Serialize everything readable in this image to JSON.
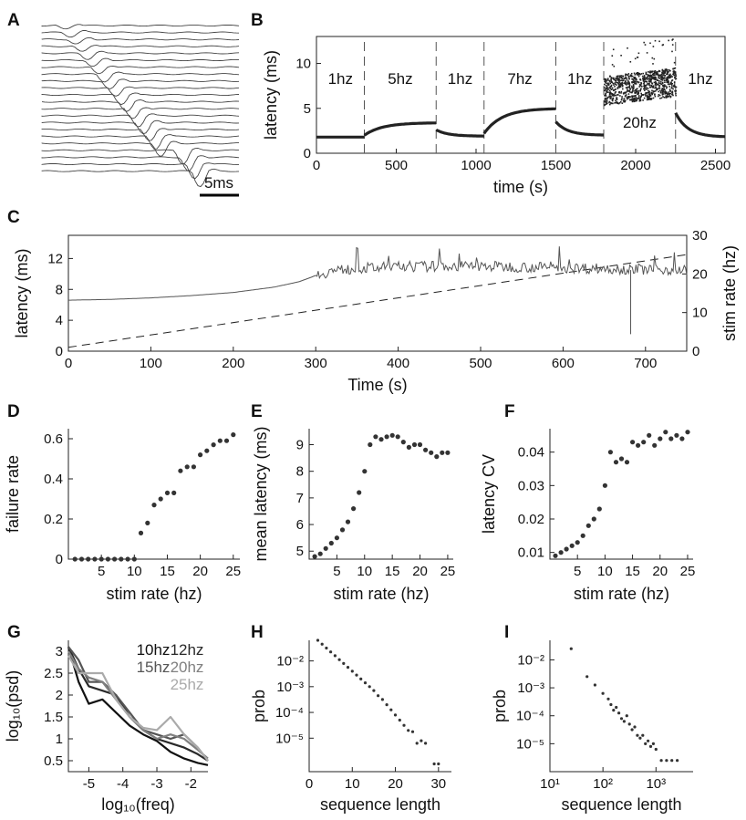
{
  "chart_data": [
    {
      "panel": "A",
      "type": "line",
      "description_label": "5ms",
      "trace_count": 22
    },
    {
      "panel": "B",
      "type": "scatter",
      "xlabel": "time (s)",
      "ylabel": "latency (ms)",
      "xlim": [
        0,
        2560
      ],
      "ylim": [
        0,
        13
      ],
      "xticks": [
        0,
        500,
        1000,
        1500,
        2000,
        2500
      ],
      "yticks": [
        0,
        5,
        10
      ],
      "segments": [
        {
          "label": "1hz",
          "start": 0,
          "end": 300,
          "latency_start": 1.8,
          "latency_end": 1.8
        },
        {
          "label": "5hz",
          "start": 300,
          "end": 750,
          "latency_start": 2.0,
          "latency_end": 3.4
        },
        {
          "label": "1hz",
          "start": 750,
          "end": 1050,
          "latency_start": 2.6,
          "latency_end": 1.9
        },
        {
          "label": "7hz",
          "start": 1050,
          "end": 1500,
          "latency_start": 2.2,
          "latency_end": 5.0
        },
        {
          "label": "1hz",
          "start": 1500,
          "end": 1800,
          "latency_start": 3.5,
          "latency_end": 2.0
        },
        {
          "label": "20hz",
          "start": 1800,
          "end": 2250,
          "latency_start": 7.0,
          "latency_end": 8.0
        },
        {
          "label": "1hz",
          "start": 2250,
          "end": 2560,
          "latency_start": 4.5,
          "latency_end": 1.8
        }
      ],
      "boundaries": [
        300,
        750,
        1050,
        1500,
        1800,
        2250
      ]
    },
    {
      "panel": "C",
      "type": "line",
      "xlabel": "Time (s)",
      "ylabel": "latency (ms)",
      "y2label": "stim rate (hz)",
      "xlim": [
        0,
        750
      ],
      "ylim": [
        0,
        15
      ],
      "y2lim": [
        0,
        30
      ],
      "xticks": [
        0,
        100,
        200,
        300,
        400,
        500,
        600,
        700
      ],
      "yticks": [
        0,
        4,
        8,
        12
      ],
      "y2ticks": [
        0,
        10,
        20,
        30
      ],
      "latency_x": [
        0,
        50,
        100,
        150,
        200,
        250,
        280,
        300,
        320,
        350,
        400,
        450,
        500,
        550,
        600,
        650,
        700,
        750
      ],
      "latency_y": [
        6.6,
        6.7,
        6.9,
        7.2,
        7.6,
        8.3,
        9.0,
        9.8,
        10.4,
        10.7,
        10.9,
        11.0,
        11.0,
        10.9,
        10.8,
        10.7,
        10.6,
        10.5
      ],
      "stim_rate": {
        "x": [
          0,
          750
        ],
        "y": [
          1,
          25
        ]
      },
      "outlier": {
        "x": 682,
        "y_min": 2.2,
        "y_max": 10.5
      }
    },
    {
      "panel": "D",
      "type": "scatter",
      "xlabel": "stim rate (hz)",
      "ylabel": "failure rate",
      "xlim": [
        0,
        26
      ],
      "ylim": [
        0,
        0.65
      ],
      "xticks": [
        5,
        10,
        15,
        20,
        25
      ],
      "yticks": [
        "0",
        "0.2",
        "0.4",
        "0.6"
      ],
      "x": [
        1,
        2,
        3,
        4,
        5,
        6,
        7,
        8,
        9,
        10,
        11,
        12,
        13,
        14,
        15,
        16,
        17,
        18,
        19,
        20,
        21,
        22,
        23,
        24,
        25
      ],
      "y": [
        0,
        0,
        0,
        0,
        0,
        0,
        0,
        0,
        0,
        0,
        0.13,
        0.18,
        0.27,
        0.3,
        0.33,
        0.33,
        0.44,
        0.46,
        0.46,
        0.52,
        0.54,
        0.57,
        0.59,
        0.59,
        0.62
      ]
    },
    {
      "panel": "E",
      "type": "scatter",
      "xlabel": "stim rate (hz)",
      "ylabel": "mean latency (ms)",
      "xlim": [
        0,
        26
      ],
      "ylim": [
        4.7,
        9.6
      ],
      "xticks": [
        5,
        10,
        15,
        20,
        25
      ],
      "yticks": [
        "5",
        "6",
        "7",
        "8",
        "9"
      ],
      "x": [
        1,
        2,
        3,
        4,
        5,
        6,
        7,
        8,
        9,
        10,
        11,
        12,
        13,
        14,
        15,
        16,
        17,
        18,
        19,
        20,
        21,
        22,
        23,
        24,
        25
      ],
      "y": [
        4.8,
        4.9,
        5.1,
        5.3,
        5.5,
        5.8,
        6.1,
        6.6,
        7.2,
        8.0,
        9.0,
        9.3,
        9.2,
        9.3,
        9.35,
        9.3,
        9.1,
        8.9,
        9.0,
        9.0,
        8.8,
        8.7,
        8.55,
        8.7,
        8.7
      ]
    },
    {
      "panel": "F",
      "type": "scatter",
      "xlabel": "stim rate (hz)",
      "ylabel": "latency CV",
      "xlim": [
        0,
        26
      ],
      "ylim": [
        0.008,
        0.047
      ],
      "xticks": [
        5,
        10,
        15,
        20,
        25
      ],
      "yticks": [
        "0.01",
        "0.02",
        "0.03",
        "0.04"
      ],
      "x": [
        1,
        2,
        3,
        4,
        5,
        6,
        7,
        8,
        9,
        10,
        11,
        12,
        13,
        14,
        15,
        16,
        17,
        18,
        19,
        20,
        21,
        22,
        23,
        24,
        25
      ],
      "y": [
        0.009,
        0.01,
        0.011,
        0.012,
        0.013,
        0.015,
        0.018,
        0.02,
        0.023,
        0.03,
        0.04,
        0.037,
        0.038,
        0.037,
        0.043,
        0.042,
        0.043,
        0.045,
        0.042,
        0.044,
        0.046,
        0.044,
        0.045,
        0.044,
        0.046
      ]
    },
    {
      "panel": "G",
      "type": "line",
      "xlabel": "log₁₀(freq)",
      "ylabel": "log₁₀(psd)",
      "xlim": [
        -5.6,
        -1.5
      ],
      "ylim": [
        0.25,
        3.25
      ],
      "xticks": [
        "-5",
        "-4",
        "-3",
        "-2"
      ],
      "yticks": [
        "0.5",
        "1",
        "1.5",
        "2",
        "2.5",
        "3"
      ],
      "x": [
        -5.6,
        -5.3,
        -5.0,
        -4.6,
        -4.2,
        -3.8,
        -3.4,
        -3.0,
        -2.6,
        -2.2,
        -1.8,
        -1.5
      ],
      "series": [
        {
          "name": "10hz",
          "color": "#111111",
          "values": [
            3.1,
            2.3,
            1.8,
            1.9,
            1.6,
            1.3,
            1.1,
            0.95,
            0.7,
            0.55,
            0.45,
            0.4
          ]
        },
        {
          "name": "12hz",
          "color": "#2a2a2a",
          "values": [
            3.1,
            2.6,
            2.2,
            2.1,
            2.0,
            1.5,
            1.2,
            1.0,
            0.9,
            0.8,
            0.65,
            0.5
          ]
        },
        {
          "name": "15hz",
          "color": "#555555",
          "values": [
            3.1,
            2.8,
            2.3,
            2.3,
            2.0,
            1.6,
            1.2,
            1.1,
            1.0,
            1.1,
            0.8,
            0.5
          ]
        },
        {
          "name": "20hz",
          "color": "#808080",
          "values": [
            3.0,
            2.6,
            2.4,
            2.3,
            1.9,
            1.5,
            1.2,
            1.0,
            1.1,
            1.0,
            0.75,
            0.55
          ]
        },
        {
          "name": "25hz",
          "color": "#aaaaaa",
          "values": [
            2.9,
            2.5,
            2.5,
            2.5,
            1.9,
            1.5,
            1.25,
            1.2,
            1.5,
            1.1,
            0.8,
            0.5
          ]
        }
      ]
    },
    {
      "panel": "H",
      "type": "scatter",
      "xlabel": "sequence length",
      "ylabel": "prob",
      "yscale": "log",
      "xlim": [
        0,
        33
      ],
      "ylim_log10": [
        -6.3,
        -1.2
      ],
      "xticks": [
        "0",
        "10",
        "20",
        "30"
      ],
      "yticks": [
        "10⁻²",
        "10⁻³",
        "10⁻⁴",
        "10⁻⁵"
      ],
      "x": [
        2,
        3,
        4,
        5,
        6,
        7,
        8,
        9,
        10,
        11,
        12,
        13,
        14,
        15,
        16,
        17,
        18,
        19,
        20,
        21,
        22,
        23,
        24,
        25,
        26,
        27,
        29,
        30
      ],
      "log10_y": [
        -1.2,
        -1.35,
        -1.5,
        -1.65,
        -1.8,
        -1.95,
        -2.1,
        -2.25,
        -2.4,
        -2.55,
        -2.7,
        -2.85,
        -3.0,
        -3.15,
        -3.35,
        -3.5,
        -3.7,
        -3.9,
        -4.1,
        -4.3,
        -4.5,
        -4.7,
        -4.75,
        -5.2,
        -5.1,
        -5.2,
        -6.0,
        -6.0
      ]
    },
    {
      "panel": "I",
      "type": "scatter",
      "xlabel": "sequence length",
      "ylabel": "prob",
      "xscale": "log",
      "yscale": "log",
      "xlim_log10": [
        1.0,
        3.7
      ],
      "ylim_log10": [
        -6.0,
        -1.3
      ],
      "xticks": [
        "10¹",
        "10²",
        "10³"
      ],
      "yticks": [
        "10⁻²",
        "10⁻³",
        "10⁻⁴",
        "10⁻⁵"
      ],
      "log10_x": [
        1.4,
        1.7,
        1.85,
        2.0,
        2.1,
        2.15,
        2.2,
        2.25,
        2.3,
        2.35,
        2.4,
        2.45,
        2.5,
        2.55,
        2.6,
        2.65,
        2.7,
        2.75,
        2.8,
        2.85,
        2.9,
        2.95,
        3.0,
        3.1,
        3.2,
        3.3,
        3.4
      ],
      "log10_y": [
        -1.6,
        -2.6,
        -2.9,
        -3.2,
        -3.4,
        -3.6,
        -3.8,
        -3.7,
        -3.9,
        -4.1,
        -4.2,
        -4.0,
        -4.3,
        -4.5,
        -4.4,
        -4.7,
        -4.8,
        -4.7,
        -5.0,
        -4.9,
        -5.1,
        -5.0,
        -5.2,
        -5.6,
        -5.6,
        -5.6,
        -5.6
      ]
    }
  ]
}
